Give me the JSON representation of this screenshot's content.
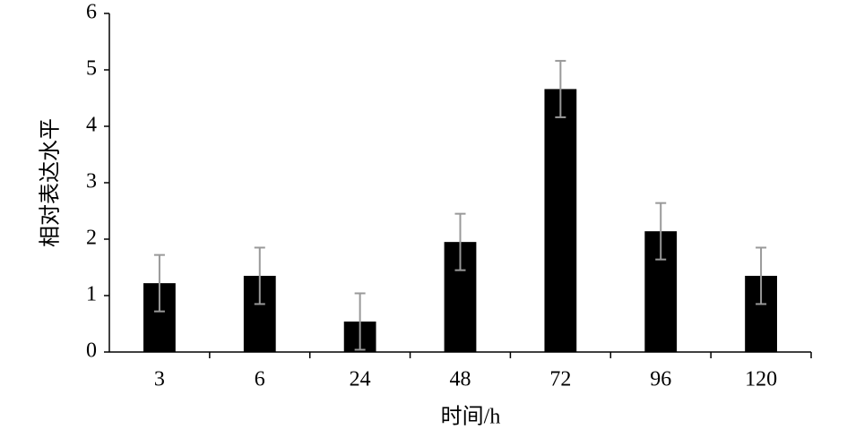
{
  "chart_data": {
    "type": "bar",
    "x_label": "时间/h",
    "y_label": "相对表达水平",
    "categories": [
      "3",
      "6",
      "24",
      "48",
      "72",
      "96",
      "120"
    ],
    "values": [
      1.22,
      1.35,
      0.54,
      1.95,
      4.66,
      2.14,
      1.35
    ],
    "errors": [
      0.5,
      0.5,
      0.5,
      0.5,
      0.5,
      0.5,
      0.5
    ],
    "color": "#000000",
    "error_color": "#999999",
    "ylim": [
      0,
      6
    ],
    "yticks": [
      0,
      1,
      2,
      3,
      4,
      5,
      6
    ],
    "grid": false
  }
}
